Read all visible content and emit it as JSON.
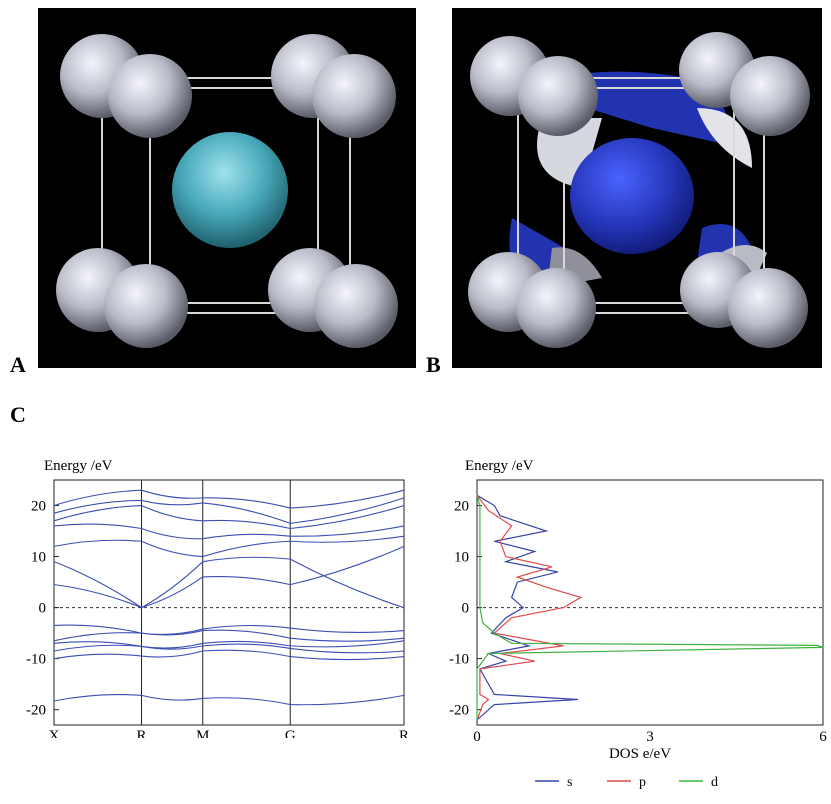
{
  "panels": {
    "a": {
      "label": "A"
    },
    "b": {
      "label": "B"
    },
    "c": {
      "label": "C"
    }
  },
  "colors": {
    "background_3d": "#000000",
    "atom_gray": "#c9cbd6",
    "atom_center_a": "#4fb3c4",
    "isosurface_blue": "#2b3ebf",
    "band_line": "#3b4fb5",
    "dos_s": "#3745a8",
    "dos_p": "#e04a4a",
    "dos_d": "#3fb23f"
  },
  "chart_data": [
    {
      "type": "line",
      "ylabel": "Energy /eV",
      "ylim": [
        -23,
        25
      ],
      "yticks": [
        20,
        10,
        0,
        -10,
        -20
      ],
      "xticklabels": [
        "X",
        "R",
        "M",
        "G",
        "R"
      ],
      "kpoints": [
        0,
        1,
        1.7,
        2.7,
        4.0
      ],
      "fermi_level": 0,
      "series": [
        {
          "values": [
            -18.3,
            -17.2,
            -17.8,
            -19.0,
            -17.2
          ]
        },
        {
          "values": [
            -10.0,
            -9.5,
            -8.5,
            -9.6,
            -9.6
          ]
        },
        {
          "values": [
            -8.5,
            -7.6,
            -7.5,
            -8.0,
            -8.5
          ]
        },
        {
          "values": [
            -7.0,
            -7.6,
            -7.0,
            -7.5,
            -6.5
          ]
        },
        {
          "values": [
            -6.5,
            -5.0,
            -4.5,
            -6.0,
            -6.0
          ]
        },
        {
          "values": [
            -3.5,
            -5.0,
            -4.2,
            -4.0,
            -4.5
          ]
        },
        {
          "values": [
            4.5,
            0.0,
            6.0,
            4.5,
            12.0
          ]
        },
        {
          "values": [
            9.0,
            0.0,
            9.0,
            9.5,
            0.0
          ]
        },
        {
          "values": [
            12.0,
            13.0,
            10.0,
            13.0,
            14.0
          ]
        },
        {
          "values": [
            16.0,
            15.5,
            13.5,
            14.0,
            16.0
          ]
        },
        {
          "values": [
            17.0,
            20.0,
            17.0,
            15.5,
            20.0
          ]
        },
        {
          "values": [
            18.5,
            21.0,
            20.5,
            16.5,
            21.5
          ]
        },
        {
          "values": [
            20.0,
            23.0,
            21.5,
            19.5,
            23.0
          ]
        }
      ]
    },
    {
      "type": "line",
      "ylabel": "Energy /eV",
      "xlabel": "DOS  e/eV",
      "xlim": [
        0,
        6
      ],
      "ylim": [
        -23,
        25
      ],
      "xticks": [
        0,
        3,
        6
      ],
      "yticks": [
        20,
        10,
        0,
        -10,
        -20
      ],
      "fermi_level": 0,
      "series": [
        {
          "name": "s",
          "color": "#3745a8",
          "energy": [
            -22,
            -19,
            -18,
            -17,
            -12,
            -10.5,
            -9,
            -7.5,
            -5,
            -2,
            0,
            2,
            5,
            7,
            9,
            11,
            13,
            15,
            18,
            20,
            22
          ],
          "values": [
            0,
            0.3,
            1.75,
            0.3,
            0.05,
            0.5,
            0.2,
            0.9,
            0.25,
            0.5,
            0.8,
            0.6,
            0.7,
            1.4,
            0.5,
            1.0,
            0.3,
            1.2,
            0.4,
            0.3,
            0.0
          ]
        },
        {
          "name": "p",
          "color": "#e04a4a",
          "energy": [
            -22,
            -19,
            -18,
            -17,
            -12,
            -10.5,
            -9,
            -7.5,
            -5,
            -2,
            0,
            2,
            4,
            6,
            8,
            10,
            13,
            16,
            19,
            22
          ],
          "values": [
            0,
            0.1,
            0.2,
            0.05,
            0.05,
            1.0,
            0.4,
            1.5,
            0.3,
            0.6,
            1.5,
            1.8,
            1.2,
            0.7,
            1.3,
            0.5,
            0.4,
            0.6,
            0.2,
            0.0
          ]
        },
        {
          "name": "d",
          "color": "#3fb23f",
          "energy": [
            -22,
            -12,
            -9,
            -7.8,
            -7.4,
            -7.0,
            -5,
            -3,
            0,
            5,
            10,
            20,
            22
          ],
          "values": [
            0,
            0,
            0.2,
            6.0,
            5.9,
            0.6,
            0.3,
            0.1,
            0.05,
            0.05,
            0.05,
            0.05,
            0.0
          ]
        }
      ],
      "legend": "bottom-right"
    }
  ]
}
